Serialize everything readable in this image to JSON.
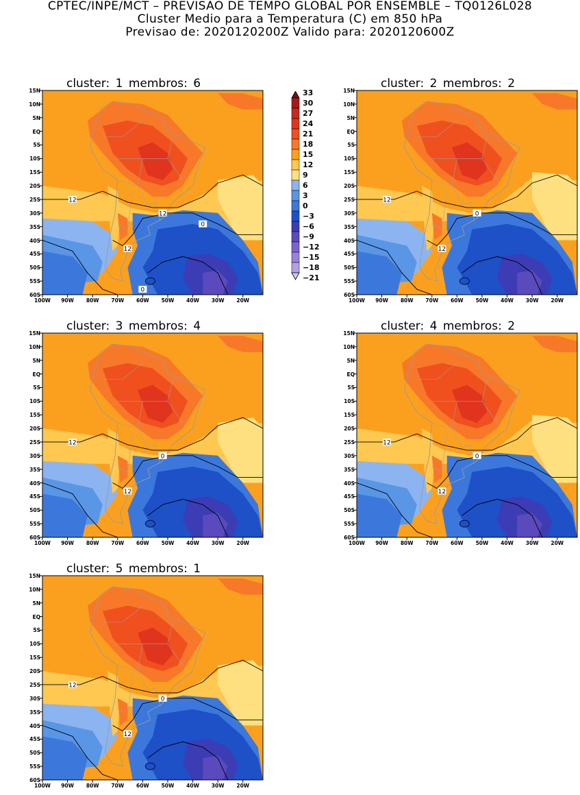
{
  "header": {
    "line1": "CPTEC/INPE/MCT – PREVISAO DE TEMPO GLOBAL POR ENSEMBLE – TQ0126L028",
    "line2": "Cluster Medio para a Temperatura (C) em 850 hPa",
    "line3": "Previsao de: 2020120200Z   Valido para: 2020120600Z"
  },
  "lat_labels": [
    "15N",
    "10N",
    "5N",
    "EQ",
    "5S",
    "10S",
    "15S",
    "20S",
    "25S",
    "30S",
    "35S",
    "40S",
    "45S",
    "50S",
    "55S",
    "60S"
  ],
  "lon_labels": [
    "100W",
    "90W",
    "80W",
    "70W",
    "60W",
    "50W",
    "40W",
    "30W",
    "20W"
  ],
  "legend": {
    "values": [
      "33",
      "30",
      "27",
      "24",
      "21",
      "18",
      "15",
      "12",
      "9",
      "6",
      "3",
      "0",
      "-3",
      "-6",
      "-9",
      "-12",
      "-15",
      "-18",
      "-21"
    ],
    "colors": [
      "#7a0c0c",
      "#a51a16",
      "#c8281e",
      "#e1341e",
      "#f0501e",
      "#f8782a",
      "#fba01e",
      "#ffc850",
      "#ffe080",
      "#8cb4f0",
      "#5a96e6",
      "#3c78dc",
      "#1e50c8",
      "#3c3cb4",
      "#5a4abe",
      "#7a64d2",
      "#9a82dc",
      "#b4a0e6",
      "#d2c8f0"
    ]
  },
  "panels": [
    {
      "title": "cluster: 1   membros: 6",
      "contours": [
        "12",
        "12",
        "12",
        "0",
        "0"
      ]
    },
    {
      "title": "cluster: 2   membros: 2",
      "contours": [
        "12",
        "12",
        "0"
      ]
    },
    {
      "title": "cluster: 3   membros: 4",
      "contours": [
        "12",
        "12",
        "0"
      ]
    },
    {
      "title": "cluster: 4   membros: 2",
      "contours": [
        "12",
        "12",
        "0"
      ]
    },
    {
      "title": "cluster: 5   membros: 1",
      "contours": [
        "12",
        "12",
        "0"
      ]
    }
  ]
}
